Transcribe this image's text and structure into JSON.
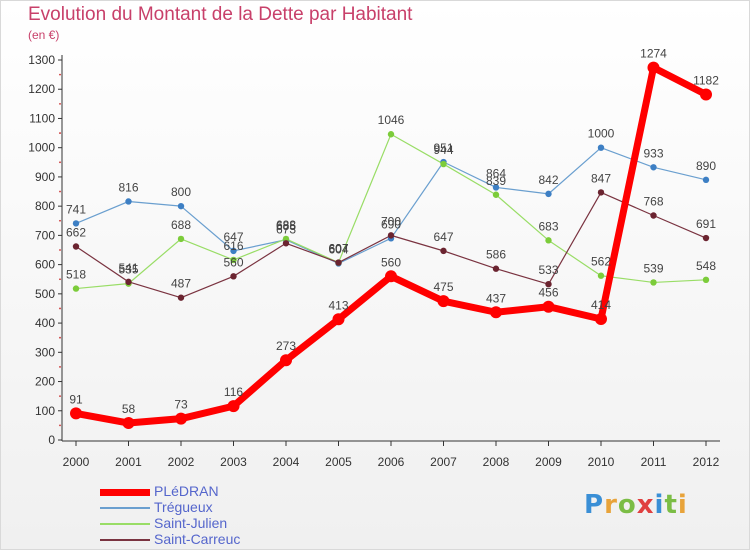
{
  "chart_data": {
    "type": "line",
    "title": "Evolution du Montant de la Dette par Habitant",
    "subtitle": "(en €)",
    "x": [
      "2000",
      "2001",
      "2002",
      "2003",
      "2004",
      "2005",
      "2006",
      "2007",
      "2008",
      "2009",
      "2010",
      "2011",
      "2012"
    ],
    "ylim": [
      0,
      1300
    ],
    "yticks": [
      0,
      100,
      200,
      300,
      400,
      500,
      600,
      700,
      800,
      900,
      1000,
      1100,
      1200,
      1300
    ],
    "grid": false,
    "legend_position": "bottom-left",
    "series": [
      {
        "name": "Trégueux",
        "color": "#6a9fcf",
        "marker": "#3d7fc4",
        "width": 1.2,
        "values": [
          741,
          816,
          800,
          647,
          685,
          604,
          690,
          951,
          864,
          842,
          1000,
          933,
          890
        ]
      },
      {
        "name": "Saint-Julien",
        "color": "#99dd66",
        "marker": "#7ccc3a",
        "width": 1.2,
        "values": [
          518,
          535,
          688,
          616,
          688,
          607,
          1046,
          944,
          839,
          683,
          562,
          539,
          548
        ]
      },
      {
        "name": "Saint-Carreuc",
        "color": "#7a3340",
        "marker": "#6b2430",
        "width": 1.2,
        "values": [
          662,
          541,
          487,
          560,
          673,
          607,
          700,
          647,
          586,
          533,
          847,
          768,
          691
        ]
      },
      {
        "name": "PLéDRAN",
        "color": "#ff0000",
        "marker": "#ff0000",
        "width": 7,
        "values": [
          91,
          58,
          73,
          116,
          273,
          413,
          560,
          475,
          437,
          456,
          414,
          1274,
          1182
        ]
      }
    ],
    "legend_order": [
      "PLéDRAN",
      "Trégueux",
      "Saint-Julien",
      "Saint-Carreuc"
    ]
  },
  "logo": {
    "text": "Proxiti",
    "colors": [
      "#3a8fd6",
      "#e8a33a",
      "#7bbd45",
      "#e04040",
      "#3a8fd6",
      "#7bbd45",
      "#e8a33a"
    ]
  }
}
